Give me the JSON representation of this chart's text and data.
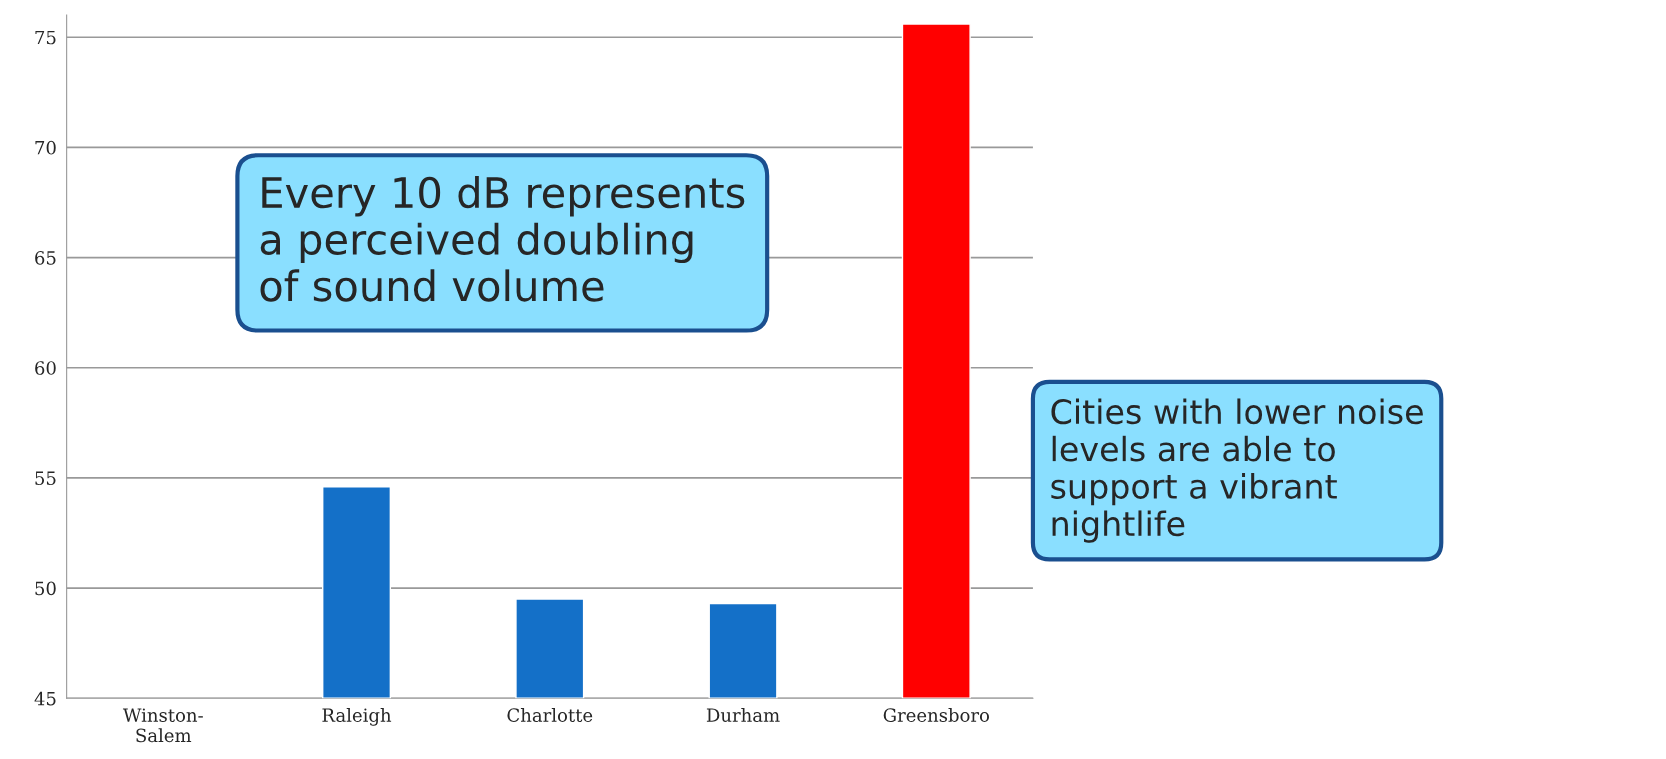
{
  "chart_data": {
    "type": "bar",
    "categories": [
      "Winston-\nSalem",
      "Raleigh",
      "Charlotte",
      "Durham",
      "Greensboro"
    ],
    "values": [
      null,
      54.6,
      49.5,
      49.3,
      75.6
    ],
    "colors": [
      "#1470c8",
      "#1470c8",
      "#1470c8",
      "#1470c8",
      "#ff0000"
    ],
    "ylim": [
      45,
      76
    ],
    "yticks": [
      45,
      50,
      55,
      60,
      65,
      70,
      75
    ],
    "grid": "y",
    "annotations": [
      "Every 10 dB represents\na perceived doubling\nof sound volume",
      "Cities with lower noise\nlevels are able to\nsupport a vibrant\nnightlife"
    ]
  }
}
